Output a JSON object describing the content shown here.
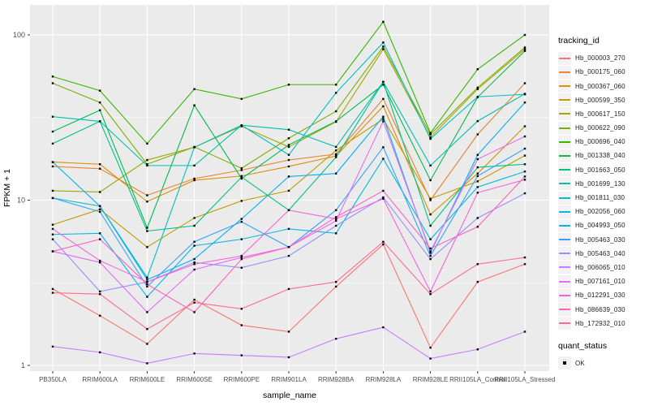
{
  "theme": {
    "panel_bg": "#EBEBEB",
    "grid": "#FFFFFF",
    "axis_text": "#4D4D4D",
    "tick": "#333333",
    "text": "#000000",
    "point": "#000000",
    "legend_key_bg": "#F2F2F2"
  },
  "chart_data": {
    "type": "line",
    "title": "",
    "xlabel": "sample_name",
    "ylabel": "FPKM + 1",
    "yscale": "log10",
    "ylim": [
      0.92,
      152
    ],
    "yticks": [
      1,
      10,
      100
    ],
    "ytick_labels": [
      "1",
      "10",
      "100"
    ],
    "y_minor_gridlines": [
      3.162,
      31.62
    ],
    "grid": true,
    "legend_position": "right",
    "categories": [
      "PB350LA",
      "RRIM600LA",
      "RRIM600LE",
      "RRIM600SE",
      "RRIM600PE",
      "RRIM901LA",
      "RRIM928BA",
      "RRIM928LA",
      "RRIM928LE",
      "RRII105LA_Control",
      "RRII105LA_Stressed"
    ],
    "series": [
      {
        "name": "Hb_000003_270",
        "color": "#F8766D",
        "values": [
          2.9,
          2.0,
          1.35,
          2.5,
          1.75,
          1.6,
          3.0,
          5.4,
          1.28,
          3.2,
          4.1
        ]
      },
      {
        "name": "Hb_000175_060",
        "color": "#EA8331",
        "values": [
          16,
          15.5,
          10.7,
          13.5,
          15.2,
          17.5,
          19,
          41,
          10,
          25,
          51
        ]
      },
      {
        "name": "Hb_000367_060",
        "color": "#D89000",
        "values": [
          17,
          16.5,
          9.8,
          13.2,
          14,
          16,
          18.5,
          37,
          8.2,
          14.5,
          28
        ]
      },
      {
        "name": "Hb_000599_350",
        "color": "#C09B00",
        "values": [
          7.1,
          8.8,
          5.2,
          7.8,
          9.9,
          11.4,
          20,
          31,
          10.2,
          13,
          18.6
        ]
      },
      {
        "name": "Hb_000617_150",
        "color": "#A3A500",
        "values": [
          11.4,
          11.2,
          17.5,
          20.9,
          28,
          21,
          29.8,
          82,
          24,
          47,
          82
        ]
      },
      {
        "name": "Hb_000622_090",
        "color": "#7CAE00",
        "values": [
          51,
          39,
          16.5,
          21,
          15.6,
          23.7,
          34.5,
          85,
          25,
          48,
          84
        ]
      },
      {
        "name": "Hb_000696_040",
        "color": "#39B600",
        "values": [
          56,
          46,
          22,
          47,
          41,
          50,
          50,
          120,
          25.5,
          62,
          100
        ]
      },
      {
        "name": "Hb_001338_040",
        "color": "#00BB4E",
        "values": [
          26,
          35,
          6.8,
          37.5,
          13.5,
          21.6,
          30,
          50,
          13.2,
          42,
          80
        ]
      },
      {
        "name": "Hb_001663_050",
        "color": "#00C087",
        "values": [
          22,
          30,
          6.5,
          7.0,
          13.8,
          8.7,
          18.2,
          52,
          7.0,
          15.8,
          16.5
        ]
      },
      {
        "name": "Hb_001699_130",
        "color": "#00C1A7",
        "values": [
          32,
          30,
          16.2,
          16.2,
          28.4,
          26.7,
          21,
          52,
          16.2,
          30.1,
          44
        ]
      },
      {
        "name": "Hb_001811_030",
        "color": "#00BFC4",
        "values": [
          10.3,
          9.2,
          3.4,
          20.9,
          28.4,
          18.8,
          44.6,
          90,
          23.5,
          42.2,
          43.7
        ]
      },
      {
        "name": "Hb_002056_060",
        "color": "#00BAE0",
        "values": [
          6.2,
          6.3,
          2.6,
          5.3,
          5.8,
          6.7,
          6.3,
          17.8,
          5.8,
          12,
          14.9
        ]
      },
      {
        "name": "Hb_004993_050",
        "color": "#00B0F6",
        "values": [
          17,
          9.2,
          3.3,
          4.4,
          7.7,
          13.9,
          14.5,
          32,
          4.8,
          18.8,
          39
        ]
      },
      {
        "name": "Hb_005463_030",
        "color": "#35A2FF",
        "values": [
          10.3,
          8.5,
          3.0,
          5.6,
          7.4,
          5.2,
          8.7,
          20.9,
          4.6,
          14,
          20.5
        ]
      },
      {
        "name": "Hb_005463_040",
        "color": "#9590FF",
        "values": [
          5.8,
          2.8,
          3.2,
          4.2,
          3.9,
          4.6,
          7.0,
          10.4,
          4.4,
          7.8,
          11.0
        ]
      },
      {
        "name": "Hb_006065_010",
        "color": "#C77CFF",
        "values": [
          1.3,
          1.2,
          1.03,
          1.18,
          1.15,
          1.12,
          1.45,
          1.7,
          1.1,
          1.25,
          1.6
        ]
      },
      {
        "name": "Hb_007161_010",
        "color": "#E76BF3",
        "values": [
          4.9,
          4.2,
          2.1,
          3.8,
          4.5,
          5.2,
          7.5,
          30,
          4.9,
          17.7,
          24.3
        ]
      },
      {
        "name": "Hb_012291_030",
        "color": "#FA62DB",
        "values": [
          6.7,
          4.3,
          3.2,
          4.1,
          4.6,
          8.7,
          7.7,
          10.2,
          2.8,
          11.1,
          13.3
        ]
      },
      {
        "name": "Hb_086639_030",
        "color": "#FF61C3",
        "values": [
          4.9,
          5.8,
          3.1,
          2.1,
          4.4,
          5.2,
          7.9,
          11.4,
          5.1,
          6.9,
          13.9
        ]
      },
      {
        "name": "Hb_172932_010",
        "color": "#FF6A98",
        "values": [
          2.75,
          2.7,
          1.66,
          2.4,
          2.2,
          2.9,
          3.2,
          5.6,
          2.7,
          4.1,
          4.5
        ]
      }
    ],
    "legend": {
      "color_title": "tracking_id",
      "shape_title": "quant_status",
      "shape_entries": [
        {
          "label": "OK"
        }
      ]
    }
  }
}
